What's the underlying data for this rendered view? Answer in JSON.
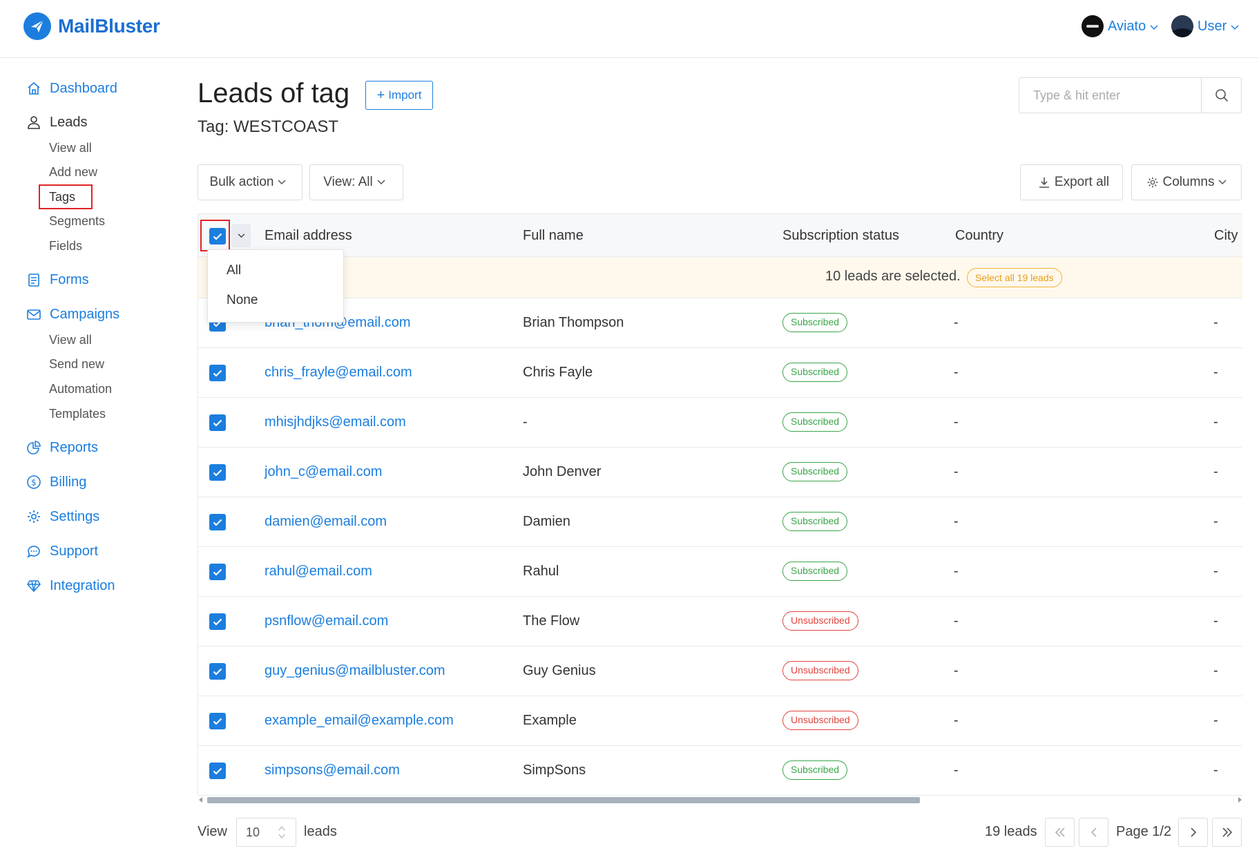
{
  "brand": {
    "name": "MailBluster"
  },
  "header": {
    "workspace": {
      "label": "Aviato"
    },
    "user": {
      "label": "User"
    }
  },
  "sidebar": {
    "dashboard": "Dashboard",
    "leads": {
      "label": "Leads",
      "items": [
        "View all",
        "Add new",
        "Tags",
        "Segments",
        "Fields"
      ]
    },
    "forms": "Forms",
    "campaigns": {
      "label": "Campaigns",
      "items": [
        "View all",
        "Send new",
        "Automation",
        "Templates"
      ]
    },
    "reports": "Reports",
    "billing": "Billing",
    "settings": "Settings",
    "support": "Support",
    "integration": "Integration"
  },
  "page": {
    "title": "Leads of tag",
    "import_label": "Import",
    "tag_line": "Tag: WESTCOAST",
    "search_placeholder": "Type & hit enter"
  },
  "toolbar": {
    "bulk_action": "Bulk action",
    "view": "View: All",
    "export_all": "Export all",
    "columns": "Columns"
  },
  "table": {
    "columns": [
      "Email address",
      "Full name",
      "Subscription status",
      "Country",
      "City"
    ],
    "selection_text": "10 leads are selected.",
    "select_all_label": "Select all 19 leads",
    "dropdown": [
      "All",
      "None"
    ],
    "rows": [
      {
        "email": "brian_thom@email.com",
        "name": "Brian Thompson",
        "status": "Subscribed",
        "country": "-",
        "city": "-"
      },
      {
        "email": "chris_frayle@email.com",
        "name": "Chris Fayle",
        "status": "Subscribed",
        "country": "-",
        "city": "-"
      },
      {
        "email": "mhisjhdjks@email.com",
        "name": "-",
        "status": "Subscribed",
        "country": "-",
        "city": "-"
      },
      {
        "email": "john_c@email.com",
        "name": "John Denver",
        "status": "Subscribed",
        "country": "-",
        "city": "-"
      },
      {
        "email": "damien@email.com",
        "name": "Damien",
        "status": "Subscribed",
        "country": "-",
        "city": "-"
      },
      {
        "email": "rahul@email.com",
        "name": "Rahul",
        "status": "Subscribed",
        "country": "-",
        "city": "-"
      },
      {
        "email": "psnflow@email.com",
        "name": "The Flow",
        "status": "Unsubscribed",
        "country": "-",
        "city": "-"
      },
      {
        "email": "guy_genius@mailbluster.com",
        "name": "Guy Genius",
        "status": "Unsubscribed",
        "country": "-",
        "city": "-"
      },
      {
        "email": "example_email@example.com",
        "name": "Example",
        "status": "Unsubscribed",
        "country": "-",
        "city": "-"
      },
      {
        "email": "simpsons@email.com",
        "name": "SimpSons",
        "status": "Subscribed",
        "country": "-",
        "city": "-"
      }
    ]
  },
  "footer": {
    "view_label": "View",
    "page_size": "10",
    "leads_label": "leads",
    "total": "19 leads",
    "page": "Page 1/2"
  },
  "colors": {
    "accent": "#1b7ede",
    "subscribed": "#3aa548",
    "unsubscribed": "#e0443e",
    "selection_bg": "#fff8ec",
    "highlight_box": "#e02424"
  }
}
